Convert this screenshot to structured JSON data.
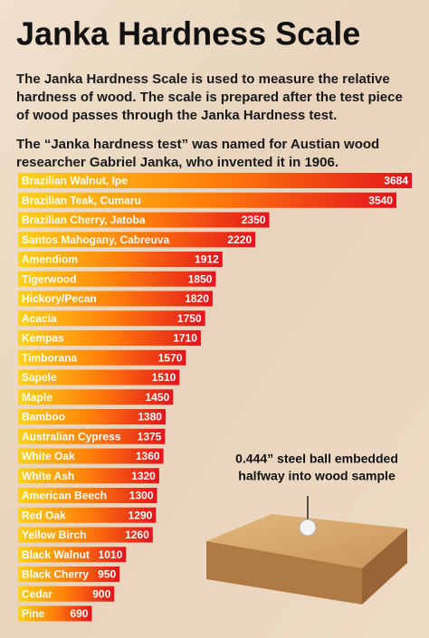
{
  "chart_data": {
    "type": "bar",
    "orientation": "horizontal",
    "title": "Janka Hardness Scale",
    "description": [
      [
        "The Janka Hardness Scale is used to measure the relative",
        "hardness of wood. The scale is prepared after the test piece",
        "of wood passes through the Janka Hardness test."
      ],
      [
        "The “Janka hardness test” was named for Austian wood",
        "researcher Gabriel Janka, who invented it in 1906."
      ]
    ],
    "annotation": [
      "0.444” steel ball embedded",
      "halfway into wood sample"
    ],
    "categories": [
      "Brazilian Walnut, Ipe",
      "Brazilian Teak, Cumaru",
      "Brazilian Cherry, Jatoba",
      "Santos Mahogany, Cabreuva",
      "Amendiom",
      "Tigerwood",
      "Hickory/Pecan",
      "Acacia",
      "Kempas",
      "Timborana",
      "Sapele",
      "Maple",
      "Bamboo",
      "Australian Cypress",
      "White Oak",
      "White Ash",
      "American Beech",
      "Red Oak",
      "Yellow Birch",
      "Black Walnut",
      "Black Cherry",
      "Cedar",
      "Pine"
    ],
    "values": [
      3684,
      3540,
      2350,
      2220,
      1912,
      1850,
      1820,
      1750,
      1710,
      1570,
      1510,
      1450,
      1380,
      1375,
      1360,
      1320,
      1300,
      1290,
      1260,
      1010,
      950,
      900,
      690
    ],
    "colors": [
      "#ffd21a",
      "#ff7e0a",
      "#e3141c"
    ]
  }
}
